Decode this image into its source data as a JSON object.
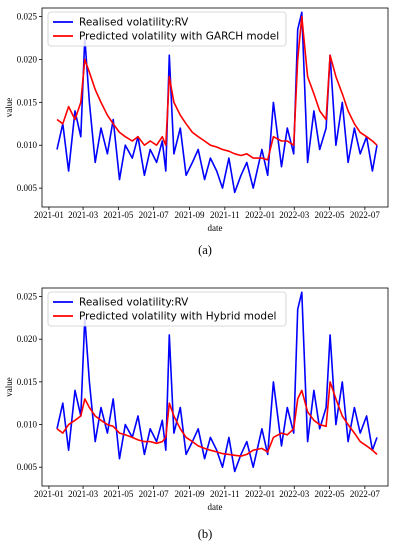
{
  "chart_data": [
    {
      "type": "line",
      "panel_label": "(a)",
      "xlabel": "date",
      "ylabel": "value",
      "x_ticks": [
        "2021-01",
        "2021-03",
        "2021-05",
        "2021-07",
        "2021-09",
        "2021-11",
        "2022-01",
        "2022-03",
        "2022-05",
        "2022-07"
      ],
      "y_ticks": [
        "0.005",
        "0.010",
        "0.015",
        "0.020",
        "0.025"
      ],
      "xlim": [
        "2020-12-20",
        "2022-08-10"
      ],
      "ylim": [
        0.0028,
        0.026
      ],
      "legend_position": "top-left",
      "series": [
        {
          "name": "Realised volatility:RV",
          "color": "#0000ff",
          "x": [
            "2021-01-15",
            "2021-01-25",
            "2021-02-04",
            "2021-02-15",
            "2021-02-25",
            "2021-03-04",
            "2021-03-12",
            "2021-03-22",
            "2021-04-01",
            "2021-04-12",
            "2021-04-22",
            "2021-05-03",
            "2021-05-13",
            "2021-05-25",
            "2021-06-04",
            "2021-06-15",
            "2021-06-25",
            "2021-07-06",
            "2021-07-16",
            "2021-07-22",
            "2021-07-28",
            "2021-08-05",
            "2021-08-16",
            "2021-08-26",
            "2021-09-06",
            "2021-09-16",
            "2021-09-27",
            "2021-10-07",
            "2021-10-18",
            "2021-10-28",
            "2021-11-08",
            "2021-11-18",
            "2021-11-29",
            "2021-12-09",
            "2021-12-20",
            "2022-01-04",
            "2022-01-14",
            "2022-01-24",
            "2022-02-07",
            "2022-02-17",
            "2022-02-28",
            "2022-03-07",
            "2022-03-14",
            "2022-03-24",
            "2022-04-04",
            "2022-04-14",
            "2022-04-25",
            "2022-05-02",
            "2022-05-12",
            "2022-05-23",
            "2022-06-02",
            "2022-06-13",
            "2022-06-23",
            "2022-07-04",
            "2022-07-14",
            "2022-07-22"
          ],
          "y": [
            0.0095,
            0.0125,
            0.007,
            0.014,
            0.011,
            0.0225,
            0.015,
            0.008,
            0.012,
            0.009,
            0.013,
            0.006,
            0.01,
            0.0085,
            0.011,
            0.0065,
            0.0095,
            0.008,
            0.0105,
            0.007,
            0.0205,
            0.009,
            0.012,
            0.0065,
            0.008,
            0.0095,
            0.006,
            0.0085,
            0.007,
            0.005,
            0.0085,
            0.0045,
            0.0065,
            0.008,
            0.005,
            0.0095,
            0.0065,
            0.015,
            0.0075,
            0.012,
            0.009,
            0.0235,
            0.0255,
            0.008,
            0.014,
            0.0095,
            0.012,
            0.0205,
            0.01,
            0.015,
            0.008,
            0.012,
            0.009,
            0.011,
            0.007,
            0.01
          ]
        },
        {
          "name": "Predicted volatility with GARCH model",
          "color": "#ff0000",
          "x": [
            "2021-01-15",
            "2021-01-25",
            "2021-02-04",
            "2021-02-15",
            "2021-02-25",
            "2021-03-04",
            "2021-03-12",
            "2021-03-22",
            "2021-04-01",
            "2021-04-12",
            "2021-04-22",
            "2021-05-03",
            "2021-05-13",
            "2021-05-25",
            "2021-06-04",
            "2021-06-15",
            "2021-06-25",
            "2021-07-06",
            "2021-07-16",
            "2021-07-22",
            "2021-07-28",
            "2021-08-05",
            "2021-08-16",
            "2021-08-26",
            "2021-09-06",
            "2021-09-16",
            "2021-09-27",
            "2021-10-07",
            "2021-10-18",
            "2021-10-28",
            "2021-11-08",
            "2021-11-18",
            "2021-11-29",
            "2021-12-09",
            "2021-12-20",
            "2022-01-04",
            "2022-01-14",
            "2022-01-24",
            "2022-02-07",
            "2022-02-17",
            "2022-02-28",
            "2022-03-07",
            "2022-03-14",
            "2022-03-24",
            "2022-04-04",
            "2022-04-14",
            "2022-04-25",
            "2022-05-02",
            "2022-05-12",
            "2022-05-23",
            "2022-06-02",
            "2022-06-13",
            "2022-06-23",
            "2022-07-04",
            "2022-07-14",
            "2022-07-22"
          ],
          "y": [
            0.013,
            0.0125,
            0.0145,
            0.013,
            0.015,
            0.02,
            0.0185,
            0.0165,
            0.015,
            0.0135,
            0.0125,
            0.0115,
            0.011,
            0.0105,
            0.011,
            0.01,
            0.0105,
            0.01,
            0.011,
            0.01,
            0.018,
            0.015,
            0.0135,
            0.0125,
            0.0115,
            0.011,
            0.0105,
            0.01,
            0.0098,
            0.0095,
            0.0093,
            0.009,
            0.0088,
            0.009,
            0.0085,
            0.0085,
            0.0083,
            0.011,
            0.0105,
            0.0105,
            0.01,
            0.02,
            0.025,
            0.018,
            0.016,
            0.014,
            0.013,
            0.0205,
            0.018,
            0.016,
            0.014,
            0.0125,
            0.0115,
            0.011,
            0.0105,
            0.01
          ]
        }
      ]
    },
    {
      "type": "line",
      "panel_label": "(b)",
      "xlabel": "date",
      "ylabel": "value",
      "x_ticks": [
        "2021-01",
        "2021-03",
        "2021-05",
        "2021-07",
        "2021-09",
        "2021-11",
        "2022-01",
        "2022-03",
        "2022-05",
        "2022-07"
      ],
      "y_ticks": [
        "0.005",
        "0.010",
        "0.015",
        "0.020",
        "0.025"
      ],
      "xlim": [
        "2020-12-20",
        "2022-08-10"
      ],
      "ylim": [
        0.0028,
        0.026
      ],
      "legend_position": "top-left",
      "series": [
        {
          "name": "Realised volatility:RV",
          "color": "#0000ff",
          "x": [
            "2021-01-15",
            "2021-01-25",
            "2021-02-04",
            "2021-02-15",
            "2021-02-25",
            "2021-03-04",
            "2021-03-12",
            "2021-03-22",
            "2021-04-01",
            "2021-04-12",
            "2021-04-22",
            "2021-05-03",
            "2021-05-13",
            "2021-05-25",
            "2021-06-04",
            "2021-06-15",
            "2021-06-25",
            "2021-07-06",
            "2021-07-16",
            "2021-07-22",
            "2021-07-28",
            "2021-08-05",
            "2021-08-16",
            "2021-08-26",
            "2021-09-06",
            "2021-09-16",
            "2021-09-27",
            "2021-10-07",
            "2021-10-18",
            "2021-10-28",
            "2021-11-08",
            "2021-11-18",
            "2021-11-29",
            "2021-12-09",
            "2021-12-20",
            "2022-01-04",
            "2022-01-14",
            "2022-01-24",
            "2022-02-07",
            "2022-02-17",
            "2022-02-28",
            "2022-03-07",
            "2022-03-14",
            "2022-03-24",
            "2022-04-04",
            "2022-04-14",
            "2022-04-25",
            "2022-05-02",
            "2022-05-12",
            "2022-05-23",
            "2022-06-02",
            "2022-06-13",
            "2022-06-23",
            "2022-07-04",
            "2022-07-14",
            "2022-07-22"
          ],
          "y": [
            0.0095,
            0.0125,
            0.007,
            0.014,
            0.011,
            0.0225,
            0.015,
            0.008,
            0.012,
            0.009,
            0.013,
            0.006,
            0.01,
            0.0085,
            0.011,
            0.0065,
            0.0095,
            0.008,
            0.0105,
            0.007,
            0.0205,
            0.009,
            0.012,
            0.0065,
            0.008,
            0.0095,
            0.006,
            0.0085,
            0.007,
            0.005,
            0.0085,
            0.0045,
            0.0065,
            0.008,
            0.005,
            0.0095,
            0.0065,
            0.015,
            0.0075,
            0.012,
            0.009,
            0.0235,
            0.0255,
            0.008,
            0.014,
            0.0095,
            0.012,
            0.0205,
            0.01,
            0.015,
            0.008,
            0.012,
            0.009,
            0.011,
            0.007,
            0.0085
          ]
        },
        {
          "name": "Predicted volatility with Hybrid model",
          "color": "#ff0000",
          "x": [
            "2021-01-15",
            "2021-01-25",
            "2021-02-04",
            "2021-02-15",
            "2021-02-25",
            "2021-03-04",
            "2021-03-12",
            "2021-03-22",
            "2021-04-01",
            "2021-04-12",
            "2021-04-22",
            "2021-05-03",
            "2021-05-13",
            "2021-05-25",
            "2021-06-04",
            "2021-06-15",
            "2021-06-25",
            "2021-07-06",
            "2021-07-16",
            "2021-07-22",
            "2021-07-28",
            "2021-08-05",
            "2021-08-16",
            "2021-08-26",
            "2021-09-06",
            "2021-09-16",
            "2021-09-27",
            "2021-10-07",
            "2021-10-18",
            "2021-10-28",
            "2021-11-08",
            "2021-11-18",
            "2021-11-29",
            "2021-12-09",
            "2021-12-20",
            "2022-01-04",
            "2022-01-14",
            "2022-01-24",
            "2022-02-07",
            "2022-02-17",
            "2022-02-28",
            "2022-03-07",
            "2022-03-14",
            "2022-03-24",
            "2022-04-04",
            "2022-04-14",
            "2022-04-25",
            "2022-05-02",
            "2022-05-12",
            "2022-05-23",
            "2022-06-02",
            "2022-06-13",
            "2022-06-23",
            "2022-07-04",
            "2022-07-14",
            "2022-07-22"
          ],
          "y": [
            0.0095,
            0.009,
            0.01,
            0.0105,
            0.011,
            0.013,
            0.012,
            0.011,
            0.0105,
            0.01,
            0.0098,
            0.009,
            0.0088,
            0.0085,
            0.0082,
            0.008,
            0.008,
            0.0078,
            0.008,
            0.0085,
            0.0125,
            0.011,
            0.0095,
            0.0085,
            0.008,
            0.0075,
            0.0072,
            0.007,
            0.0068,
            0.0066,
            0.0065,
            0.0064,
            0.0063,
            0.0065,
            0.007,
            0.0072,
            0.0068,
            0.0085,
            0.009,
            0.0088,
            0.0095,
            0.013,
            0.014,
            0.0115,
            0.0105,
            0.01,
            0.0098,
            0.015,
            0.013,
            0.011,
            0.01,
            0.009,
            0.008,
            0.0075,
            0.007,
            0.0065
          ]
        }
      ]
    }
  ]
}
